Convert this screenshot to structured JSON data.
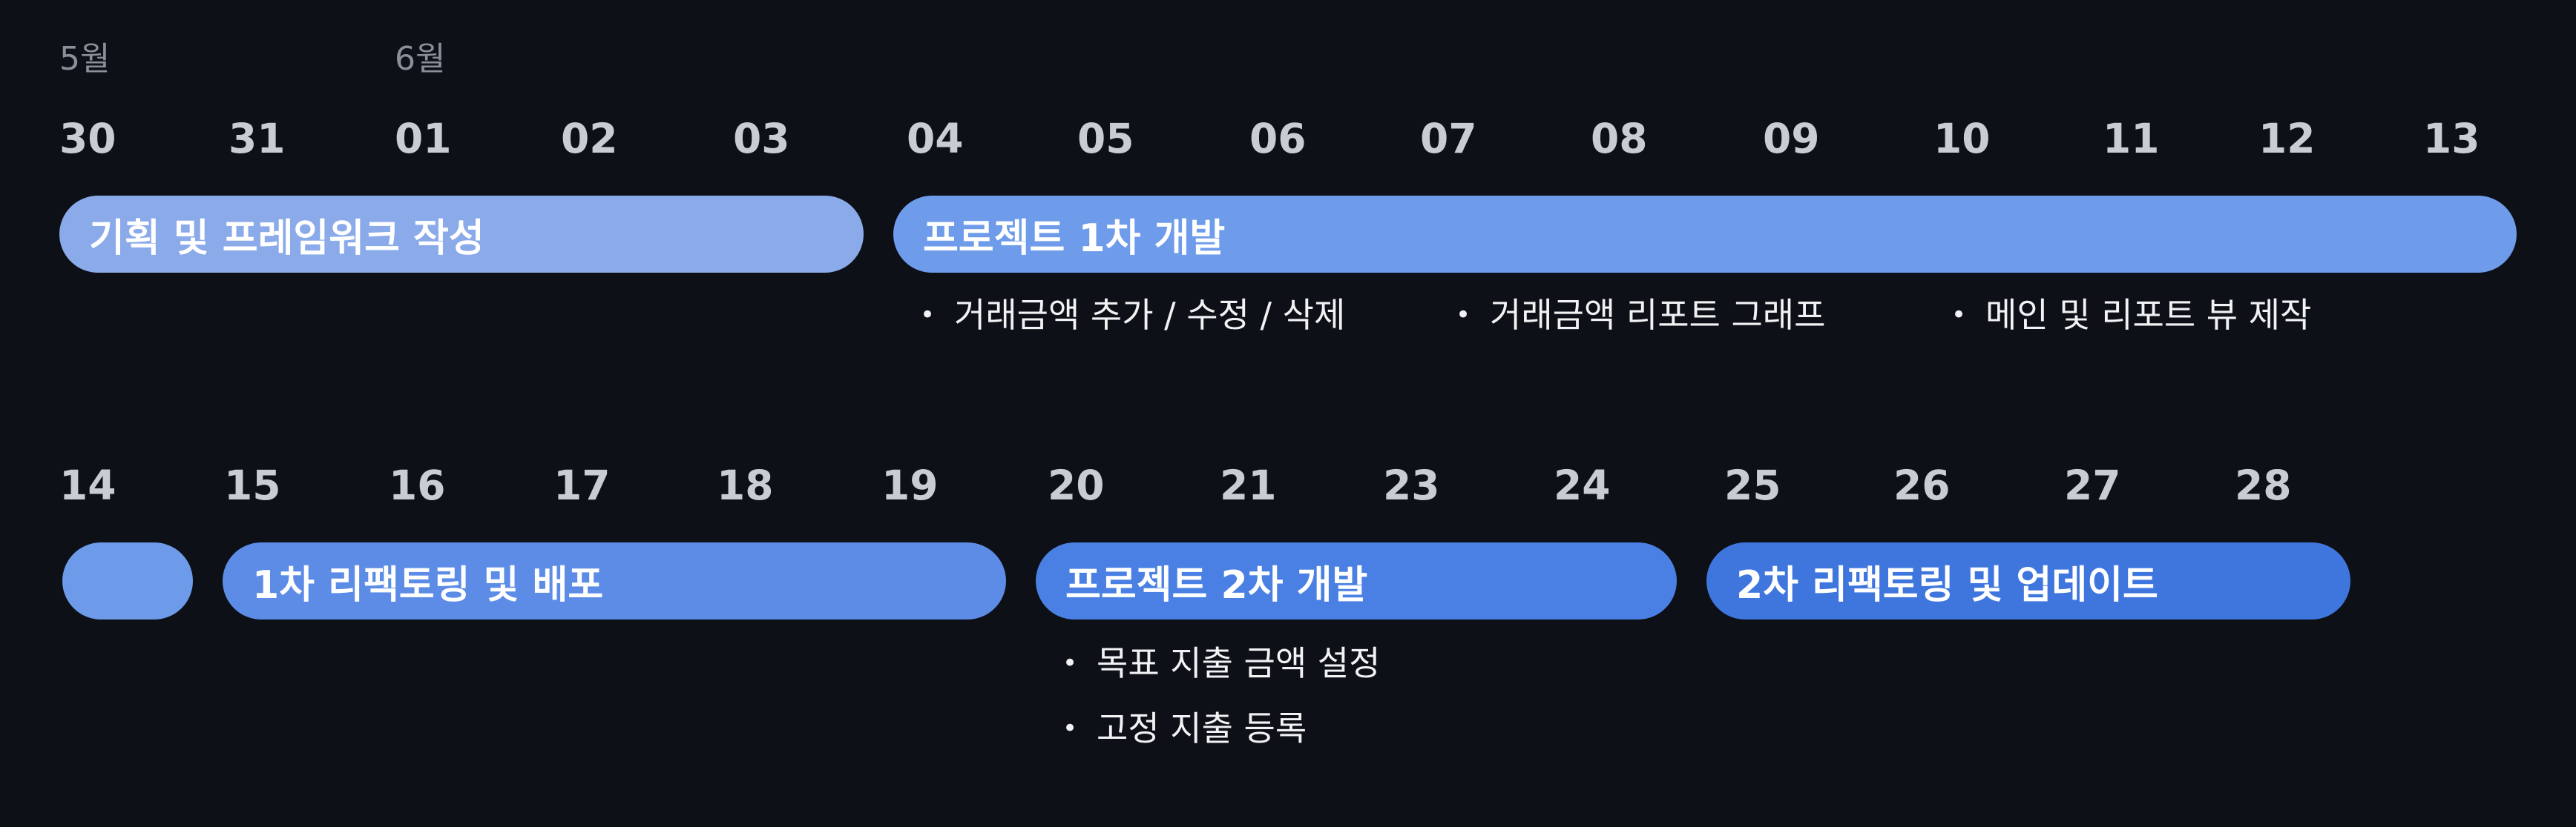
{
  "months": {
    "may": "5월",
    "june": "6월"
  },
  "row1": {
    "days": [
      "30",
      "31",
      "01",
      "02",
      "03",
      "04",
      "05",
      "06",
      "07",
      "08",
      "09",
      "10",
      "11",
      "12",
      "13"
    ],
    "bars": {
      "planning": "기획 및 프레임워크 작성",
      "dev1": "프로젝트 1차 개발"
    },
    "notes": [
      "거래금액 추가 / 수정 / 삭제",
      "거래금액 리포트 그래프",
      "메인 및 리포트 뷰 제작"
    ]
  },
  "row2": {
    "days": [
      "14",
      "15",
      "16",
      "17",
      "18",
      "19",
      "20",
      "21",
      "23",
      "24",
      "25",
      "26",
      "27",
      "28"
    ],
    "bars": {
      "blank": "",
      "refactor1": "1차 리팩토링 및 배포",
      "dev2": "프로젝트 2차 개발",
      "refactor2": "2차 리팩토링 및 업데이트"
    },
    "notes": [
      "목표 지출 금액 설정",
      "고정 지출 등록"
    ]
  },
  "colors": {
    "background": "#0d1016",
    "bar_planning": "#8aaae9",
    "bar_dev1": "#6e9bea",
    "bar_blank": "#6d9ae9",
    "bar_refactor1": "#5d8ce6",
    "bar_dev2": "#4a80e3",
    "bar_refactor2": "#3f76de"
  }
}
